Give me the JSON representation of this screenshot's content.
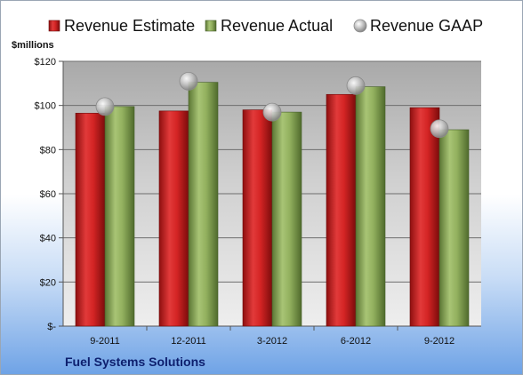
{
  "company": "Fuel Systems Solutions",
  "chart_data": {
    "type": "bar",
    "ylabel": "$millions",
    "categories": [
      "9-2011",
      "12-2011",
      "3-2012",
      "6-2012",
      "9-2012"
    ],
    "ylim": [
      0,
      120
    ],
    "yticks": [
      0,
      20,
      40,
      60,
      80,
      100,
      120
    ],
    "ytick_labels": [
      "$-",
      "$20",
      "$40",
      "$60",
      "$80",
      "$100",
      "$120"
    ],
    "grid": true,
    "legend_position": "top",
    "series": [
      {
        "name": "Revenue Estimate",
        "type": "bar",
        "color": "#cc2020",
        "values": [
          96.5,
          97.5,
          98,
          105,
          99
        ]
      },
      {
        "name": "Revenue Actual",
        "type": "bar",
        "color": "#8fae5a",
        "values": [
          99.5,
          110.5,
          97,
          108.5,
          89
        ]
      },
      {
        "name": "Revenue GAAP",
        "type": "marker",
        "color": "#b0b0b0",
        "values": [
          99.5,
          111,
          97,
          109,
          89.5
        ]
      }
    ]
  }
}
